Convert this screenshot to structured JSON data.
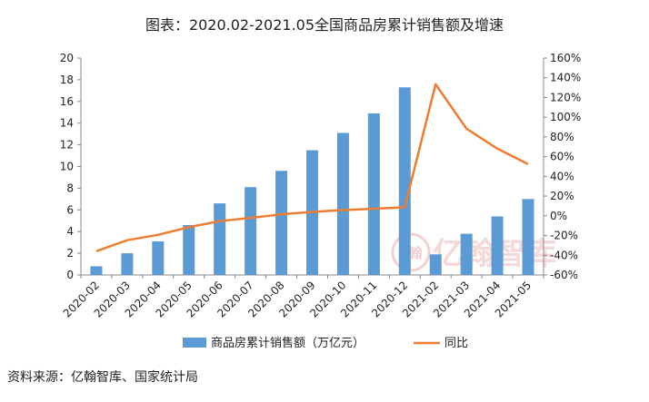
{
  "source_label": "资料来源：亿翰智库、国家统计局",
  "watermark": {
    "text": "亿翰智库",
    "logo_text": "E翰",
    "color": "#e9a9a9"
  },
  "chart_data": {
    "type": "bar",
    "title": "图表：2020.02-2021.05全国商品房累计销售额及增速",
    "categories": [
      "2020-02",
      "2020-03",
      "2020-04",
      "2020-05",
      "2020-06",
      "2020-07",
      "2020-08",
      "2020-09",
      "2020-10",
      "2020-11",
      "2020-12",
      "2021-02",
      "2021-03",
      "2021-04",
      "2021-05"
    ],
    "y_left": {
      "min": 0,
      "max": 20,
      "step": 2,
      "ticks": [
        "0",
        "2",
        "4",
        "6",
        "8",
        "10",
        "12",
        "14",
        "16",
        "18",
        "20"
      ]
    },
    "y_right": {
      "min": -60,
      "max": 160,
      "step": 20,
      "ticks": [
        "-60%",
        "-40%",
        "-20%",
        "0%",
        "20%",
        "40%",
        "60%",
        "80%",
        "100%",
        "120%",
        "140%",
        "160%"
      ]
    },
    "series": [
      {
        "name": "商品房累计销售额（万亿元）",
        "type": "bar",
        "axis": "left",
        "color": "#5b9bd5",
        "values": [
          0.8,
          2.0,
          3.1,
          4.6,
          6.6,
          8.1,
          9.6,
          11.5,
          13.1,
          14.9,
          17.3,
          1.9,
          3.8,
          5.4,
          7.0
        ]
      },
      {
        "name": "同比",
        "type": "line",
        "axis": "right",
        "color": "#ed7d31",
        "values": [
          -35.9,
          -24.7,
          -19.3,
          -11.6,
          -5.4,
          -2.1,
          1.6,
          4.0,
          5.8,
          7.2,
          8.7,
          133.4,
          88.4,
          68.1,
          52.4
        ]
      }
    ],
    "grid": false,
    "legend_position": "bottom"
  }
}
